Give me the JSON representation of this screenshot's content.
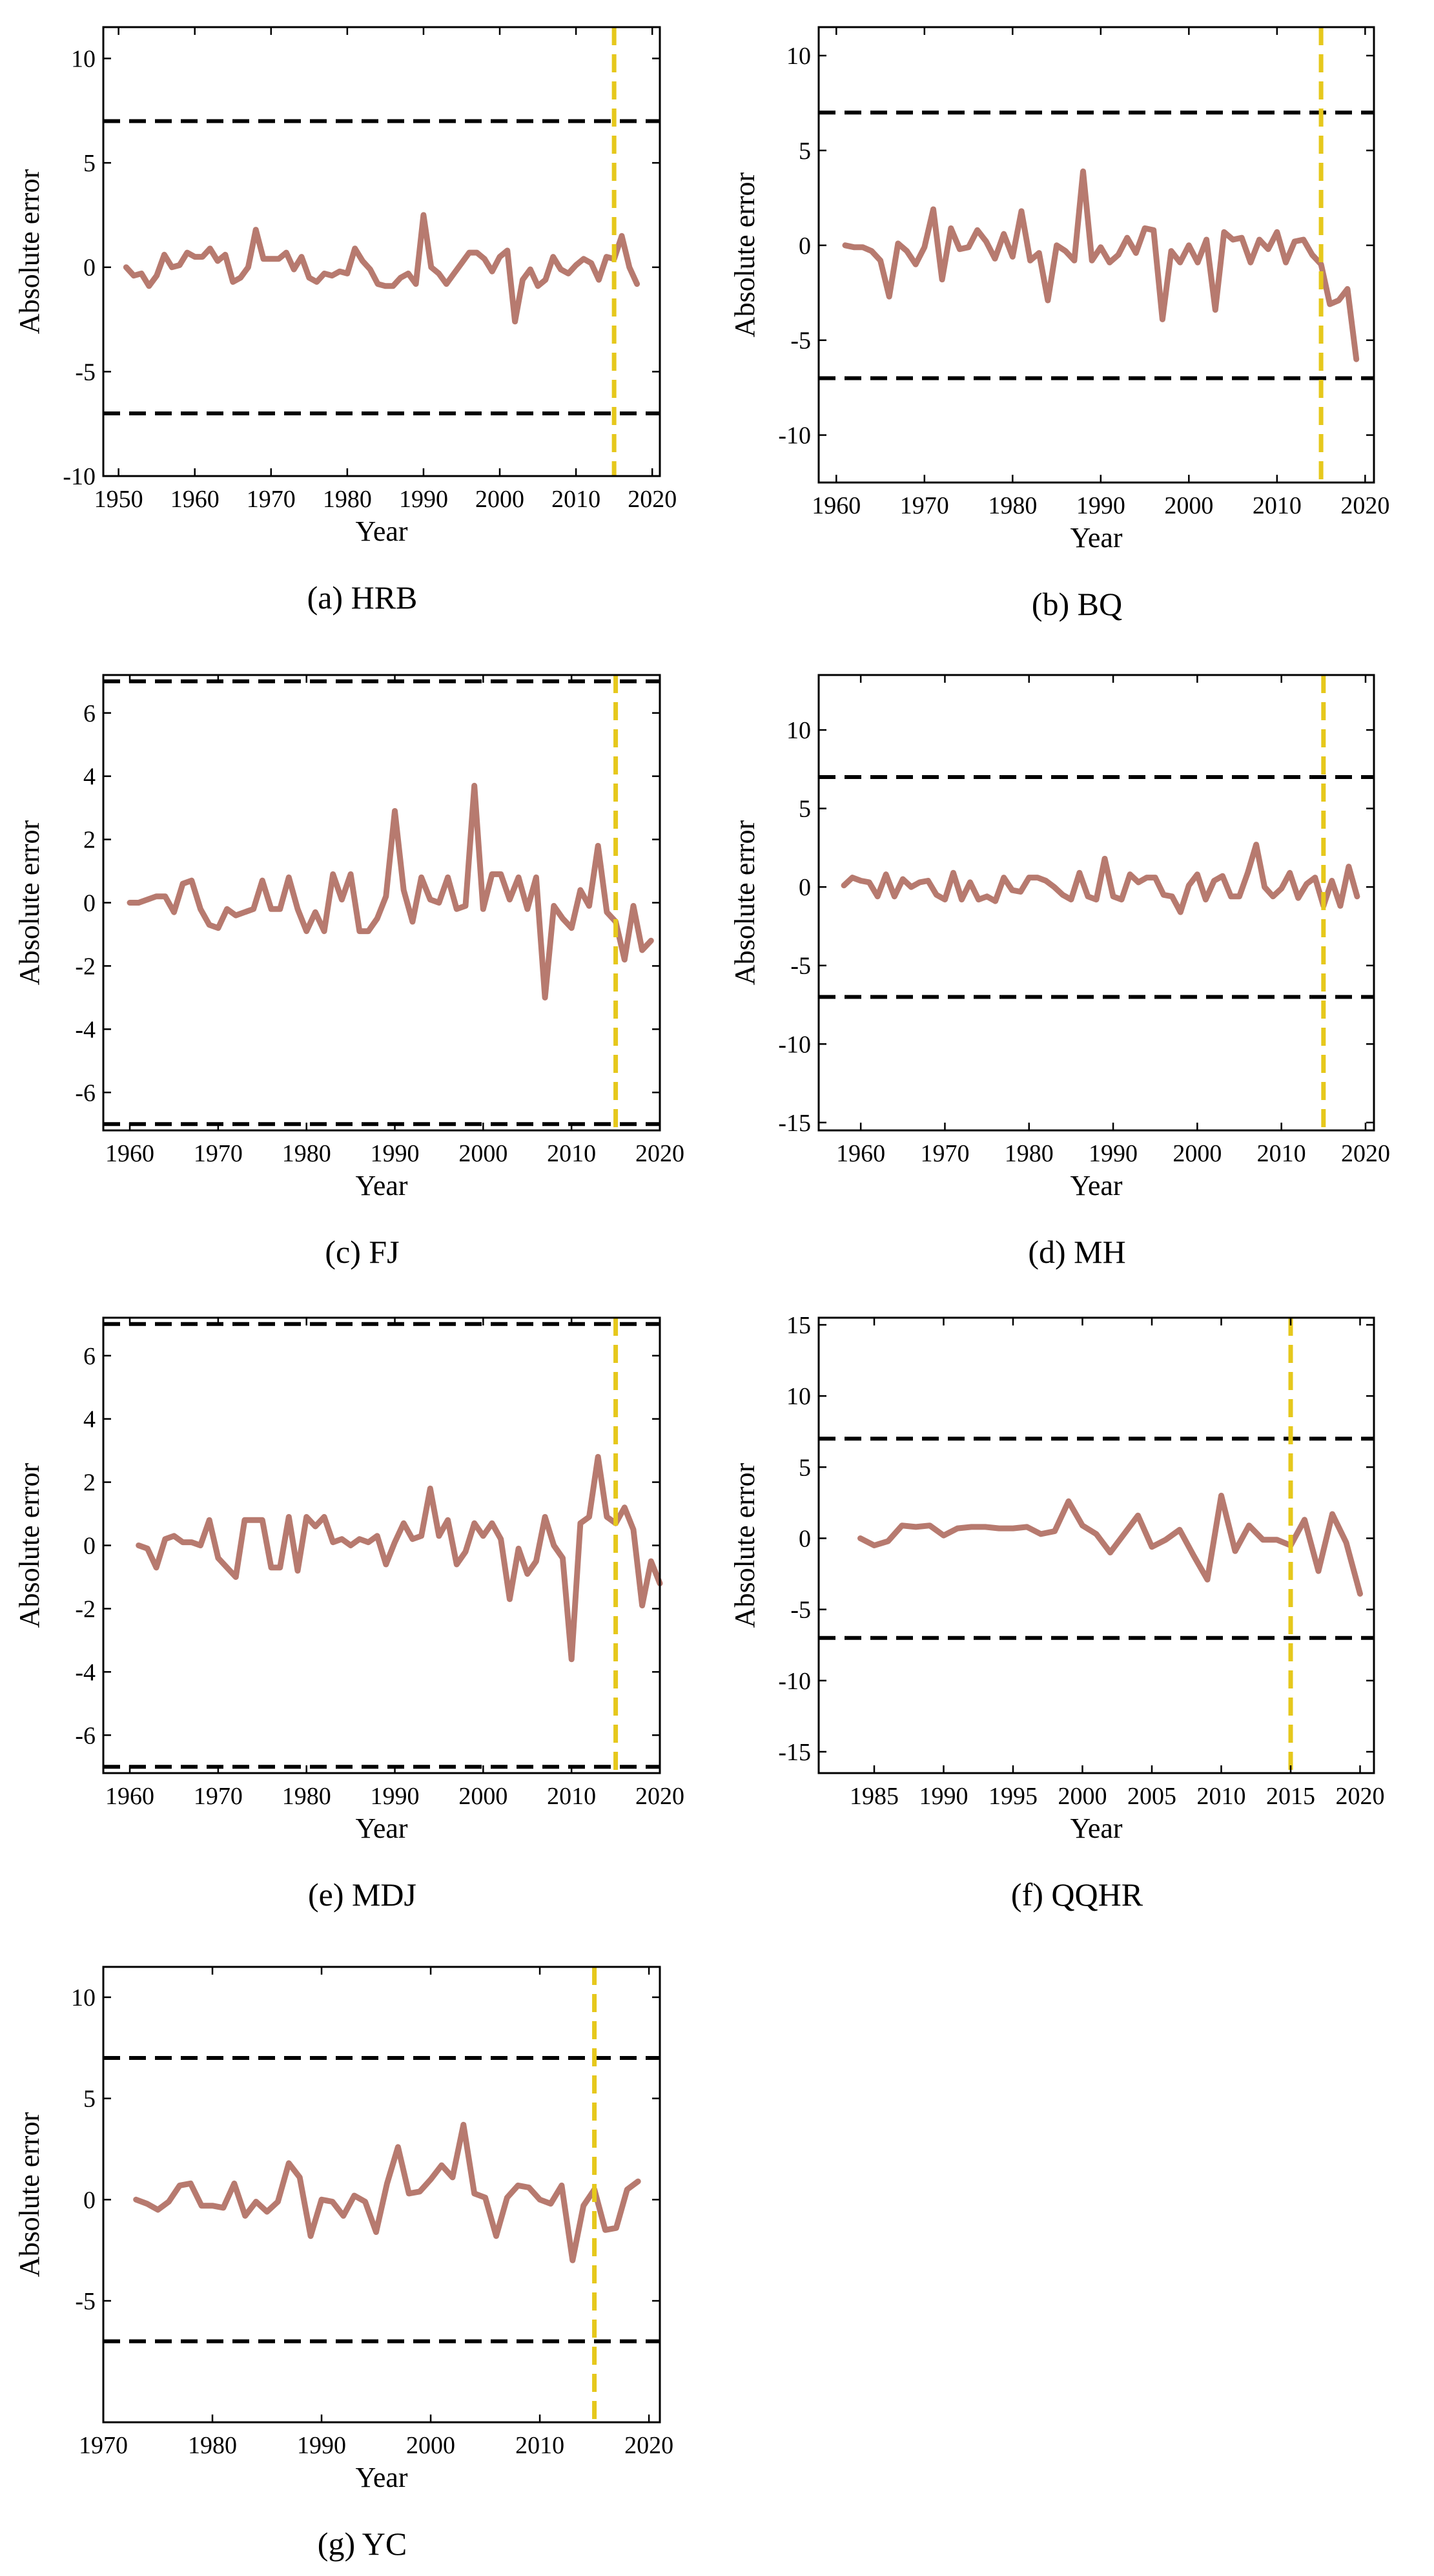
{
  "colors": {
    "series": "#b77a6f",
    "threshold": "#000000",
    "cutoff": "#e6c81c",
    "frame": "#000000"
  },
  "chart_data": [
    {
      "type": "line",
      "caption": "(a)  HRB",
      "xlabel": "Year",
      "ylabel": "Absolute error",
      "xlim": [
        1948,
        2021
      ],
      "ylim": [
        -10,
        11.5
      ],
      "xticks": [
        1950,
        1960,
        1970,
        1980,
        1990,
        2000,
        2010,
        2020
      ],
      "yticks": [
        -10,
        -5,
        0,
        5,
        10
      ],
      "thresholds": [
        7,
        -7
      ],
      "cutoff_year": 2015,
      "series": [
        {
          "name": "Absolute error",
          "x_start": 1951,
          "values": [
            0,
            -0.4,
            -0.3,
            -0.9,
            -0.4,
            0.6,
            0,
            0.1,
            0.7,
            0.5,
            0.5,
            0.9,
            0.3,
            0.6,
            -0.7,
            -0.5,
            0,
            1.8,
            0.4,
            0.4,
            0.4,
            0.7,
            -0.1,
            0.5,
            -0.5,
            -0.7,
            -0.3,
            -0.4,
            -0.2,
            -0.3,
            0.9,
            0.3,
            -0.1,
            -0.8,
            -0.9,
            -0.9,
            -0.5,
            -0.3,
            -0.8,
            2.5,
            0,
            -0.3,
            -0.8,
            -0.3,
            0.2,
            0.7,
            0.7,
            0.4,
            -0.2,
            0.5,
            0.8,
            -2.6,
            -0.6,
            -0.1,
            -0.9,
            -0.6,
            0.5,
            -0.1,
            -0.3,
            0.1,
            0.4,
            0.2,
            -0.6,
            0.5,
            0.4,
            1.5,
            0,
            -0.8
          ]
        }
      ]
    },
    {
      "type": "line",
      "caption": "(b)  BQ",
      "xlabel": "Year",
      "ylabel": "Absolute error",
      "xlim": [
        1958,
        2021
      ],
      "ylim": [
        -12.5,
        11.5
      ],
      "xticks": [
        1960,
        1970,
        1980,
        1990,
        2000,
        2010,
        2020
      ],
      "yticks": [
        -10,
        -5,
        0,
        5,
        10
      ],
      "thresholds": [
        7,
        -7
      ],
      "cutoff_year": 2015,
      "series": [
        {
          "name": "Absolute error",
          "x_start": 1961,
          "values": [
            0,
            -0.1,
            -0.1,
            -0.3,
            -0.8,
            -2.7,
            0.1,
            -0.3,
            -1,
            -0.1,
            1.9,
            -1.8,
            0.9,
            -0.2,
            -0.1,
            0.8,
            0.2,
            -0.7,
            0.6,
            -0.6,
            1.8,
            -0.8,
            -0.4,
            -2.9,
            0,
            -0.3,
            -0.8,
            3.9,
            -0.8,
            -0.1,
            -0.9,
            -0.5,
            0.4,
            -0.4,
            0.9,
            0.8,
            -3.9,
            -0.3,
            -0.9,
            0,
            -0.9,
            0.3,
            -3.4,
            0.7,
            0.3,
            0.4,
            -0.9,
            0.3,
            -0.2,
            0.7,
            -0.9,
            0.2,
            0.3,
            -0.5,
            -1,
            -3.1,
            -2.9,
            -2.3,
            -6
          ]
        }
      ]
    },
    {
      "type": "line",
      "caption": "(c)  FJ",
      "xlabel": "Year",
      "ylabel": "Absolute error",
      "xlim": [
        1957,
        2020
      ],
      "ylim": [
        -7.2,
        7.2
      ],
      "xticks": [
        1960,
        1970,
        1980,
        1990,
        2000,
        2010,
        2020
      ],
      "yticks": [
        -6,
        -4,
        -2,
        0,
        2,
        4,
        6
      ],
      "thresholds": [
        7,
        -7
      ],
      "cutoff_year": 2015,
      "series": [
        {
          "name": "Absolute error",
          "x_start": 1960,
          "values": [
            0,
            0,
            0.1,
            0.2,
            0.2,
            -0.3,
            0.6,
            0.7,
            -0.2,
            -0.7,
            -0.8,
            -0.2,
            -0.4,
            -0.3,
            -0.2,
            0.7,
            -0.2,
            -0.2,
            0.8,
            -0.2,
            -0.9,
            -0.3,
            -0.9,
            0.9,
            0.1,
            0.9,
            -0.9,
            -0.9,
            -0.5,
            0.2,
            2.9,
            0.4,
            -0.6,
            0.8,
            0.1,
            0,
            0.8,
            -0.2,
            -0.1,
            3.7,
            -0.2,
            0.9,
            0.9,
            0.1,
            0.8,
            -0.2,
            0.8,
            -3,
            -0.1,
            -0.5,
            -0.8,
            0.4,
            -0.1,
            1.8,
            -0.3,
            -0.6,
            -1.8,
            -0.1,
            -1.5,
            -1.2
          ]
        }
      ]
    },
    {
      "type": "line",
      "caption": "(d) MH",
      "xlabel": "Year",
      "ylabel": "Absolute error",
      "xlim": [
        1955,
        2021
      ],
      "ylim": [
        -15.5,
        13.5
      ],
      "xticks": [
        1960,
        1970,
        1980,
        1990,
        2000,
        2010,
        2020
      ],
      "yticks": [
        -15,
        -10,
        -5,
        0,
        5,
        10
      ],
      "thresholds": [
        7,
        -7
      ],
      "cutoff_year": 2015,
      "series": [
        {
          "name": "Absolute error",
          "x_start": 1958,
          "values": [
            0.1,
            0.6,
            0.4,
            0.3,
            -0.6,
            0.8,
            -0.6,
            0.5,
            0,
            0.3,
            0.4,
            -0.5,
            -0.8,
            0.9,
            -0.8,
            0.3,
            -0.8,
            -0.6,
            -0.9,
            0.6,
            -0.2,
            -0.3,
            0.6,
            0.6,
            0.4,
            0,
            -0.5,
            -0.8,
            0.9,
            -0.6,
            -0.8,
            1.8,
            -0.6,
            -0.8,
            0.8,
            0.3,
            0.6,
            0.6,
            -0.5,
            -0.6,
            -1.6,
            0.1,
            0.8,
            -0.8,
            0.4,
            0.7,
            -0.6,
            -0.6,
            0.9,
            2.7,
            0,
            -0.6,
            -0.1,
            0.9,
            -0.7,
            0.2,
            0.6,
            -1.2,
            0.4,
            -1.2,
            1.3,
            -0.6
          ]
        }
      ]
    },
    {
      "type": "line",
      "caption": "(e)  MDJ",
      "xlabel": "Year",
      "ylabel": "Absolute error",
      "xlim": [
        1957,
        2020
      ],
      "ylim": [
        -7.2,
        7.2
      ],
      "xticks": [
        1960,
        1970,
        1980,
        1990,
        2000,
        2010,
        2020
      ],
      "yticks": [
        -6,
        -4,
        -2,
        0,
        2,
        4,
        6
      ],
      "thresholds": [
        7,
        -7
      ],
      "cutoff_year": 2015,
      "series": [
        {
          "name": "Absolute error",
          "x_start": 1961,
          "values": [
            0,
            -0.1,
            -0.7,
            0.2,
            0.3,
            0.1,
            0.1,
            0,
            0.8,
            -0.4,
            -0.7,
            -1,
            0.8,
            0.8,
            0.8,
            -0.7,
            -0.7,
            0.9,
            -0.8,
            0.9,
            0.6,
            0.9,
            0.1,
            0.2,
            0,
            0.2,
            0.1,
            0.3,
            -0.6,
            0.1,
            0.7,
            0.2,
            0.3,
            1.8,
            0.3,
            0.8,
            -0.6,
            -0.2,
            0.7,
            0.3,
            0.7,
            0.2,
            -1.7,
            -0.1,
            -0.9,
            -0.5,
            0.9,
            0,
            -0.4,
            -3.6,
            0.7,
            0.9,
            2.8,
            0.9,
            0.7,
            1.2,
            0.5,
            -1.9,
            -0.5,
            -1.2
          ]
        }
      ]
    },
    {
      "type": "line",
      "caption": "(f) QQHR",
      "xlabel": "Year",
      "ylabel": "Absolute error",
      "xlim": [
        1981,
        2021
      ],
      "ylim": [
        -16.5,
        15.5
      ],
      "xticks": [
        1985,
        1990,
        1995,
        2000,
        2005,
        2010,
        2015,
        2020
      ],
      "yticks": [
        -15,
        -10,
        -5,
        0,
        5,
        10,
        15
      ],
      "thresholds": [
        7,
        -7
      ],
      "cutoff_year": 2015,
      "series": [
        {
          "name": "Absolute error",
          "x_start": 1984,
          "values": [
            0,
            -0.5,
            -0.2,
            0.9,
            0.8,
            0.9,
            0.2,
            0.7,
            0.8,
            0.8,
            0.7,
            0.7,
            0.8,
            0.3,
            0.5,
            2.6,
            0.9,
            0.3,
            -1,
            0.3,
            1.6,
            -0.6,
            -0.1,
            0.6,
            -1.2,
            -2.9,
            3,
            -0.9,
            0.9,
            -0.1,
            -0.1,
            -0.5,
            1.3,
            -2.3,
            1.7,
            -0.3,
            -3.9
          ]
        }
      ]
    },
    {
      "type": "line",
      "caption": "(g)  YC",
      "xlabel": "Year",
      "ylabel": "Absolute error",
      "xlim": [
        1970,
        2021
      ],
      "ylim": [
        -11,
        11.5
      ],
      "xticks": [
        1970,
        1980,
        1990,
        2000,
        2010,
        2020
      ],
      "yticks": [
        -5,
        0,
        5,
        10
      ],
      "thresholds": [
        7,
        -7
      ],
      "cutoff_year": 2015,
      "series": [
        {
          "name": "Absolute error",
          "x_start": 1973,
          "values": [
            0,
            -0.2,
            -0.5,
            -0.1,
            0.7,
            0.8,
            -0.3,
            -0.3,
            -0.4,
            0.8,
            -0.8,
            -0.1,
            -0.6,
            -0.1,
            1.8,
            1.1,
            -1.8,
            0,
            -0.1,
            -0.8,
            0.2,
            -0.1,
            -1.6,
            0.8,
            2.6,
            0.3,
            0.4,
            1,
            1.7,
            1.1,
            3.7,
            0.3,
            0.1,
            -1.8,
            0.1,
            0.7,
            0.6,
            0,
            -0.2,
            0.7,
            -3,
            -0.3,
            0.5,
            -1.5,
            -1.4,
            0.5,
            0.9
          ]
        }
      ]
    }
  ]
}
